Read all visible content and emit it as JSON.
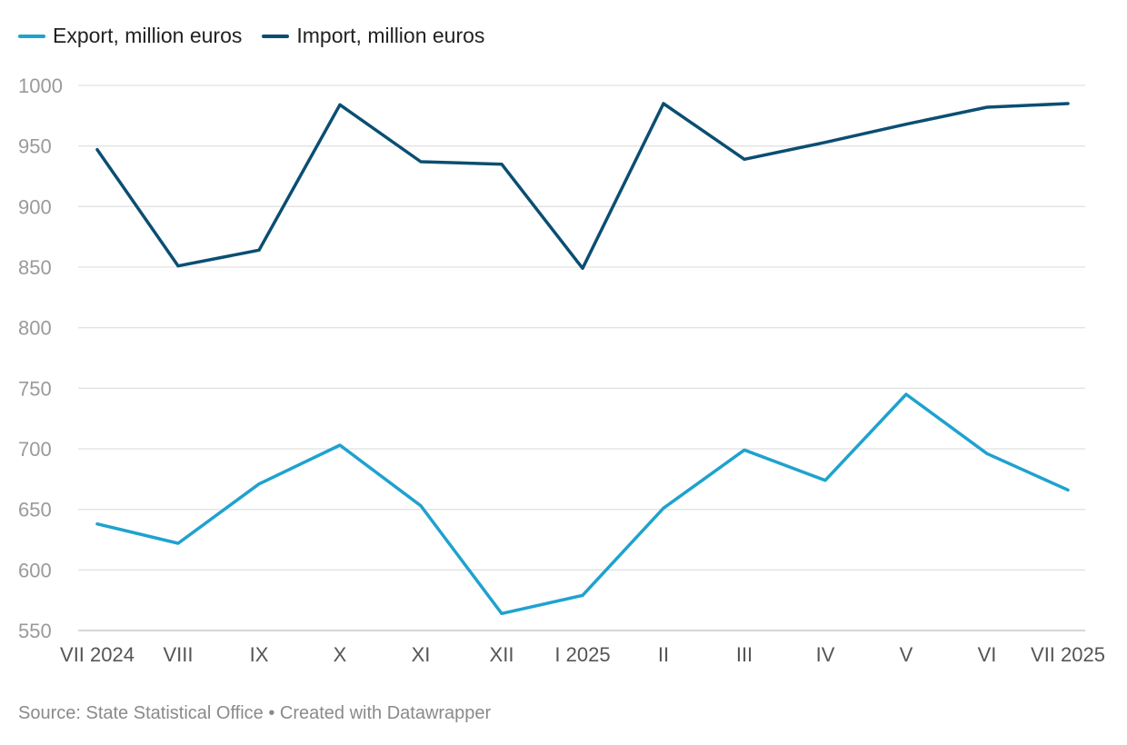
{
  "chart_data": {
    "type": "line",
    "categories": [
      "VII 2024",
      "VIII",
      "IX",
      "X",
      "XI",
      "XII",
      "I 2025",
      "II",
      "III",
      "IV",
      "V",
      "VI",
      "VII 2025"
    ],
    "series": [
      {
        "name": "Export, million euros",
        "color": "#1fa2ce",
        "values": [
          638,
          622,
          671,
          703,
          653,
          564,
          579,
          651,
          699,
          674,
          745,
          696,
          666
        ]
      },
      {
        "name": "Import, million euros",
        "color": "#0b4e72",
        "values": [
          947,
          851,
          864,
          984,
          937,
          935,
          849,
          985,
          939,
          953,
          968,
          982,
          985
        ]
      }
    ],
    "ylim": [
      550,
      1000
    ],
    "yticks": [
      550,
      600,
      650,
      700,
      750,
      800,
      850,
      900,
      950,
      1000
    ],
    "grid": true,
    "legend_position": "top-left",
    "source": "Source: State Statistical Office • Created with Datawrapper"
  }
}
